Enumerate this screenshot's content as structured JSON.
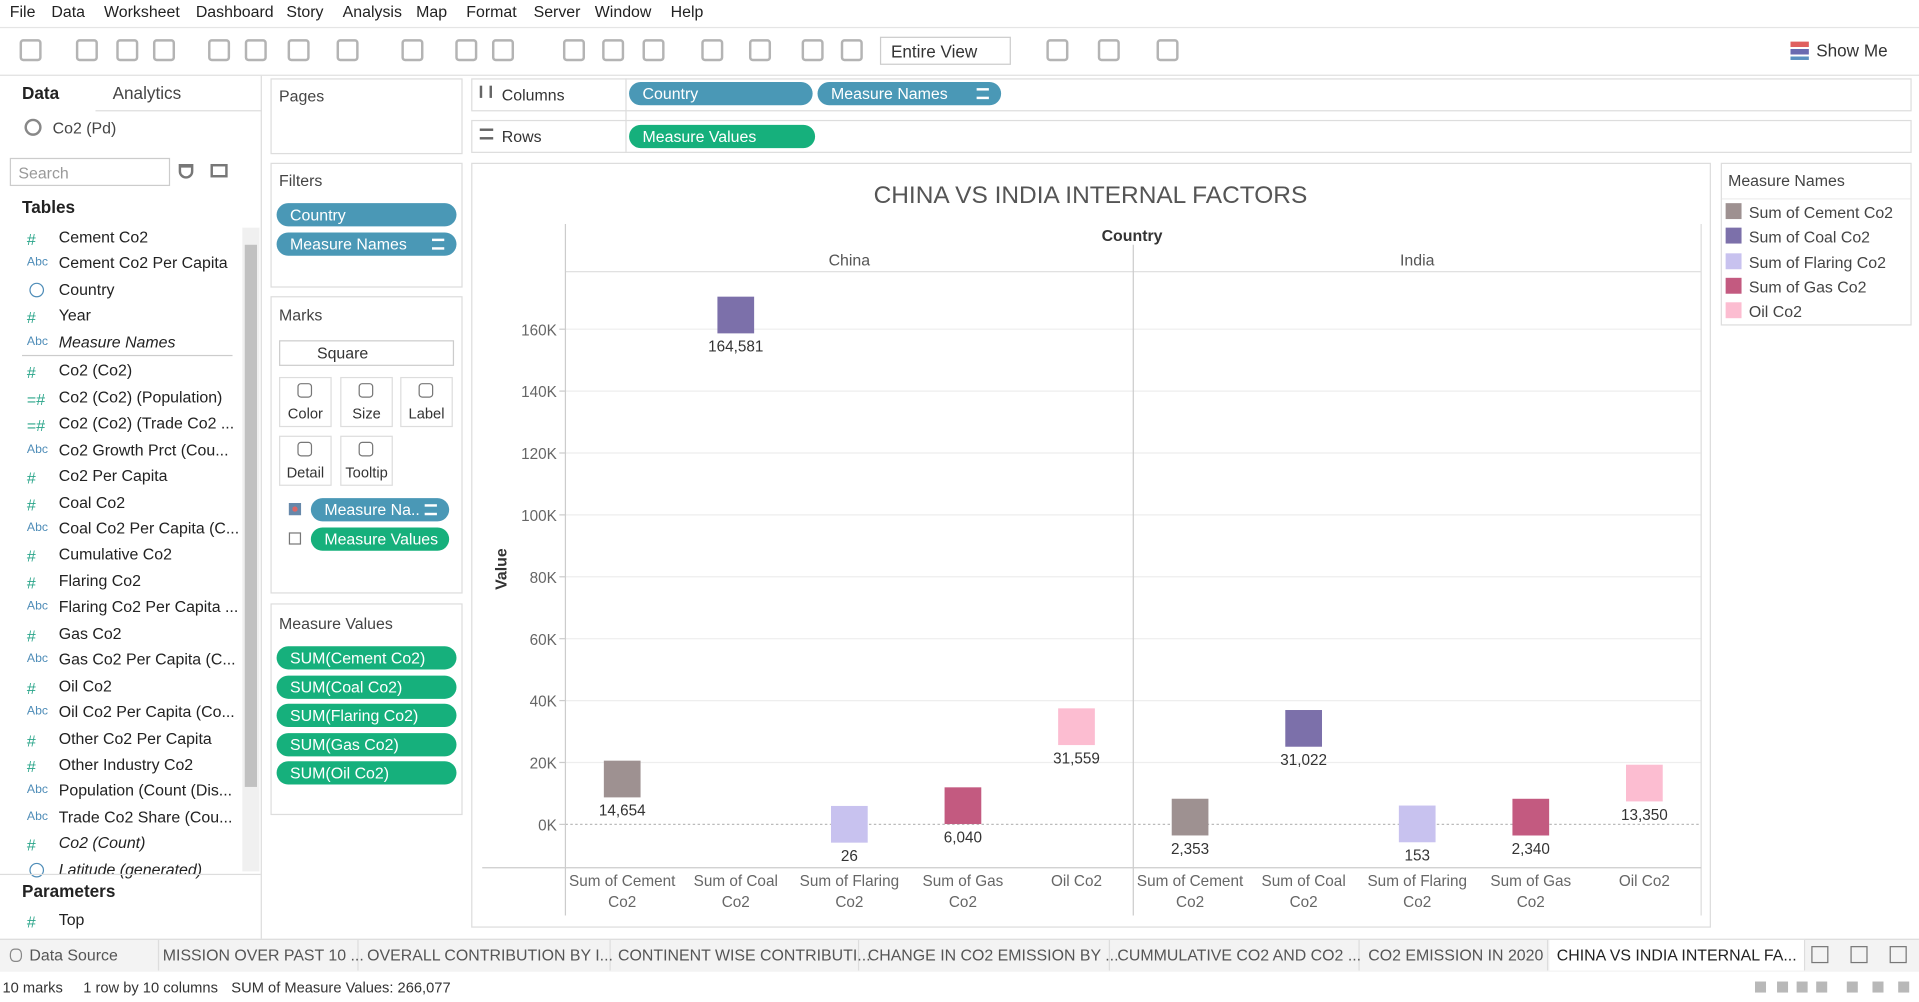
{
  "menu": [
    "File",
    "Data",
    "Worksheet",
    "Dashboard",
    "Story",
    "Analysis",
    "Map",
    "Format",
    "Server",
    "Window",
    "Help"
  ],
  "toolbar": {
    "fit": "Entire View",
    "show_me": "Show Me"
  },
  "data_pane": {
    "tabs": [
      "Data",
      "Analytics"
    ],
    "source": "Co2 (Pd)",
    "search": "Search",
    "tables_title": "Tables",
    "fields": [
      {
        "icon": "#",
        "name": "Cement Co2"
      },
      {
        "icon": "Abc",
        "name": "Cement Co2 Per Capita"
      },
      {
        "name": "Country"
      },
      {
        "icon": "#",
        "name": "Year"
      },
      {
        "icon": "Abc",
        "name": "Measure Names",
        "italic": true
      },
      {
        "icon": "#",
        "name": "Co2 (Co2)"
      },
      {
        "icon": "=#",
        "name": "Co2 (Co2) (Population)"
      },
      {
        "icon": "=#",
        "name": "Co2 (Co2) (Trade Co2 ..."
      },
      {
        "icon": "Abc",
        "name": "Co2 Growth Prct (Cou..."
      },
      {
        "icon": "#",
        "name": "Co2 Per Capita"
      },
      {
        "icon": "#",
        "name": "Coal Co2"
      },
      {
        "icon": "Abc",
        "name": "Coal Co2 Per Capita (C..."
      },
      {
        "icon": "#",
        "name": "Cumulative Co2"
      },
      {
        "icon": "#",
        "name": "Flaring Co2"
      },
      {
        "icon": "Abc",
        "name": "Flaring Co2 Per Capita ..."
      },
      {
        "icon": "#",
        "name": "Gas Co2"
      },
      {
        "icon": "Abc",
        "name": "Gas Co2 Per Capita (C..."
      },
      {
        "icon": "#",
        "name": "Oil Co2"
      },
      {
        "icon": "Abc",
        "name": "Oil Co2 Per Capita (Co..."
      },
      {
        "icon": "#",
        "name": "Other Co2 Per Capita"
      },
      {
        "icon": "#",
        "name": "Other Industry Co2"
      },
      {
        "icon": "Abc",
        "name": "Population (Count (Dis..."
      },
      {
        "icon": "Abc",
        "name": "Trade Co2 Share (Cou..."
      },
      {
        "icon": "#",
        "name": "Co2 (Count)",
        "italic": true
      },
      {
        "name": "Latitude (generated)",
        "italic": true
      }
    ],
    "parameters_title": "Parameters",
    "parameters": [
      {
        "icon": "#",
        "name": "Top"
      }
    ]
  },
  "pages": {
    "title": "Pages"
  },
  "filters": {
    "title": "Filters",
    "pills": [
      "Country",
      "Measure Names"
    ]
  },
  "marks": {
    "title": "Marks",
    "mark_type": "Square",
    "buttons": [
      "Color",
      "Size",
      "Label",
      "Detail",
      "Tooltip"
    ],
    "pills": [
      "Measure Na..",
      "Measure Values"
    ]
  },
  "measure_values": {
    "title": "Measure Values",
    "pills": [
      "SUM(Cement Co2)",
      "SUM(Coal Co2)",
      "SUM(Flaring Co2)",
      "SUM(Gas Co2)",
      "SUM(Oil Co2)"
    ]
  },
  "shelves": {
    "columns_label": "Columns",
    "columns": [
      "Country",
      "Measure Names"
    ],
    "rows_label": "Rows",
    "rows": [
      "Measure Values"
    ]
  },
  "chart_data": {
    "type": "square",
    "title": "CHINA VS INDIA INTERNAL FACTORS",
    "column_header": "Country",
    "panes": [
      "China",
      "India"
    ],
    "y_label": "Value",
    "ylim": [
      -14000,
      194000
    ],
    "yticks": [
      {
        "value": 0,
        "label": "0K"
      },
      {
        "value": 20000,
        "label": "20K"
      },
      {
        "value": 40000,
        "label": "40K"
      },
      {
        "value": 60000,
        "label": "60K"
      },
      {
        "value": 80000,
        "label": "80K"
      },
      {
        "value": 100000,
        "label": "100K"
      },
      {
        "value": 120000,
        "label": "120K"
      },
      {
        "value": 140000,
        "label": "140K"
      },
      {
        "value": 160000,
        "label": "160K"
      }
    ],
    "grid": true,
    "legend_title": "Measure Names",
    "legend": "right",
    "series": [
      {
        "name": "Sum of Cement Co2",
        "color": "#9e9191",
        "values": [
          14654,
          2353
        ],
        "value_labels": [
          "14,654",
          "2,353"
        ]
      },
      {
        "name": "Sum of Coal Co2",
        "color": "#7c70aa",
        "values": [
          164581,
          31022
        ],
        "value_labels": [
          "164,581",
          "31,022"
        ]
      },
      {
        "name": "Sum of Flaring Co2",
        "color": "#c8c2ef",
        "values": [
          26,
          153
        ],
        "value_labels": [
          "26",
          "153"
        ]
      },
      {
        "name": "Sum of Gas Co2",
        "color": "#c35a80",
        "values": [
          6040,
          2340
        ],
        "value_labels": [
          "6,040",
          "2,340"
        ]
      },
      {
        "name": "Oil Co2",
        "color": "#fcbdd1",
        "values": [
          31559,
          13350
        ],
        "value_labels": [
          "31,559",
          "13,350"
        ]
      }
    ]
  },
  "tabs": {
    "items": [
      "Data Source",
      "MISSION OVER PAST 10 ...",
      "OVERALL CONTRIBUTION BY I...",
      "CONTINENT WISE CONTRIBUTI...",
      "CHANGE IN CO2 EMISSION BY ...",
      "CUMMULATIVE CO2 AND CO2 ...",
      "CO2 EMISSION IN 2020",
      "CHINA VS INDIA INTERNAL FA..."
    ]
  },
  "status": [
    "10 marks",
    "1 row by 10 columns",
    "SUM of Measure Values: 266,077"
  ]
}
